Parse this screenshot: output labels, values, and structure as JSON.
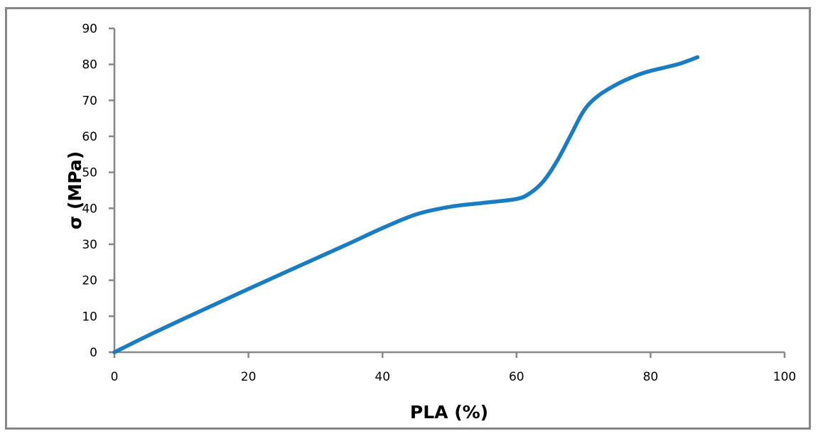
{
  "chart_data": {
    "type": "line",
    "title": "",
    "xlabel": "PLA (%)",
    "ylabel": "σ (MPa)",
    "xlim": [
      0,
      100
    ],
    "ylim": [
      0,
      90
    ],
    "x_ticks": [
      0,
      20,
      40,
      60,
      80,
      100
    ],
    "y_ticks": [
      0,
      10,
      20,
      30,
      40,
      50,
      60,
      70,
      80,
      90
    ],
    "grid": false,
    "legend": null,
    "series": [
      {
        "name": "σ",
        "color": "#1a7dc1",
        "x": [
          0,
          5,
          10,
          15,
          20,
          25,
          30,
          35,
          40,
          45,
          50,
          55,
          60,
          62,
          64,
          66,
          68,
          70,
          72,
          75,
          78,
          80,
          84,
          87
        ],
        "y": [
          0,
          4.6,
          9,
          13.3,
          17.6,
          21.8,
          26,
          30.2,
          34.5,
          38.3,
          40.4,
          41.5,
          42.6,
          44.2,
          47.5,
          53,
          60,
          67,
          71,
          74.5,
          77,
          78.2,
          80,
          82
        ]
      }
    ]
  },
  "axes": {
    "x_title": "PLA (%)",
    "y_title": "σ (MPa)",
    "x_tick_labels": [
      "0",
      "20",
      "40",
      "60",
      "80",
      "100"
    ],
    "y_tick_labels": [
      "0",
      "10",
      "20",
      "30",
      "40",
      "50",
      "60",
      "70",
      "80",
      "90"
    ]
  },
  "colors": {
    "line": "#1a7dc1",
    "axis": "#878787",
    "frame": "#878787"
  }
}
